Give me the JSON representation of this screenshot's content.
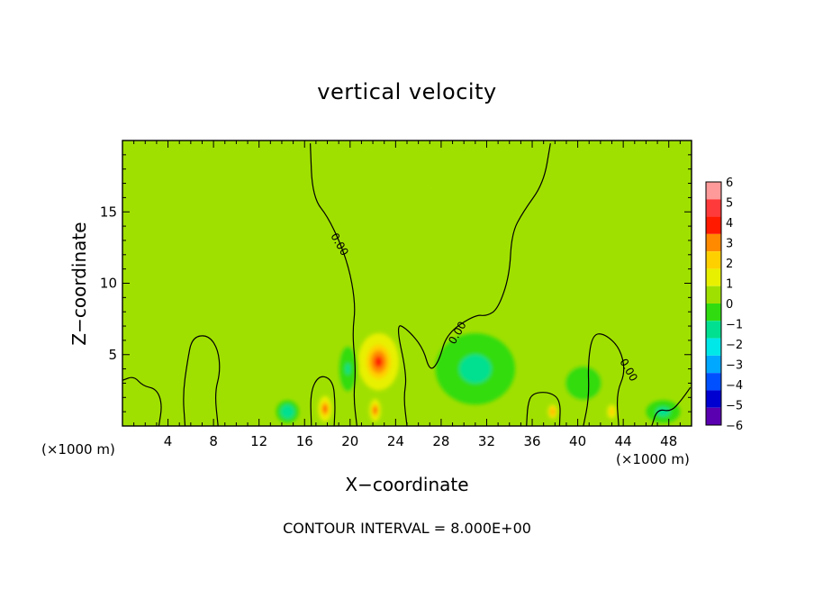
{
  "chart_data": {
    "type": "heatmap",
    "title": "vertical velocity",
    "xlabel": "X−coordinate",
    "ylabel": "Z−coordinate",
    "x_unit_label_left": "(×1000 m)",
    "x_unit_label_right": "(×1000 m)",
    "annotation": "CONTOUR INTERVAL = 8.000E+00",
    "xlim": [
      0,
      50
    ],
    "ylim": [
      0,
      20
    ],
    "x_ticks": [
      4,
      8,
      12,
      16,
      20,
      24,
      28,
      32,
      36,
      40,
      44,
      48
    ],
    "x_tick_labels": [
      "4",
      "8",
      "12",
      "16",
      "20",
      "24",
      "28",
      "32",
      "36",
      "40",
      "44",
      "48"
    ],
    "y_ticks": [
      5,
      10,
      15
    ],
    "y_tick_labels": [
      "5",
      "10",
      "15"
    ],
    "colorbar": {
      "ticks": [
        6,
        5,
        4,
        3,
        2,
        1,
        0,
        -1,
        -2,
        -3,
        -4,
        -5,
        -6
      ],
      "tick_labels": [
        "6",
        "5",
        "4",
        "3",
        "2",
        "1",
        "0",
        "−1",
        "−2",
        "−3",
        "−4",
        "−5",
        "−6"
      ],
      "colors": [
        "#ff9a9a",
        "#ff3a3a",
        "#ff1a00",
        "#ff8a00",
        "#ffd000",
        "#e8f000",
        "#a0e000",
        "#30dc10",
        "#00e090",
        "#00e8e8",
        "#00a8ff",
        "#0050ff",
        "#0000d0",
        "#5a00b0"
      ]
    },
    "background_value": 0.3,
    "features": [
      {
        "kind": "updraft",
        "x": 22.5,
        "z": 4.5,
        "peak": 4,
        "width_km": 1.8,
        "height_km": 2.0
      },
      {
        "kind": "updraft",
        "x": 17.8,
        "z": 1.2,
        "peak": 4.5,
        "width_km": 0.6,
        "height_km": 0.9
      },
      {
        "kind": "updraft",
        "x": 22.2,
        "z": 1.1,
        "peak": 4,
        "width_km": 0.5,
        "height_km": 0.8
      },
      {
        "kind": "updraft",
        "x": 37.8,
        "z": 1.0,
        "peak": 3.5,
        "width_km": 0.5,
        "height_km": 0.6
      },
      {
        "kind": "updraft",
        "x": 43.0,
        "z": 1.0,
        "peak": 2.5,
        "width_km": 0.5,
        "height_km": 0.6
      },
      {
        "kind": "plume",
        "x": 25.5,
        "z": 11.5,
        "peak": 0.6,
        "width_km": 4.5,
        "height_km": 6.0
      },
      {
        "kind": "downdraft",
        "x": 31.0,
        "z": 4.0,
        "peak": -1.8,
        "width_km": 3.5,
        "height_km": 2.5
      },
      {
        "kind": "downdraft",
        "x": 19.8,
        "z": 4.0,
        "peak": -1.2,
        "width_km": 1.0,
        "height_km": 2.0
      },
      {
        "kind": "downdraft",
        "x": 14.5,
        "z": 1.0,
        "peak": -2.0,
        "width_km": 1.0,
        "height_km": 0.8
      },
      {
        "kind": "downdraft",
        "x": 40.5,
        "z": 3.0,
        "peak": -1.0,
        "width_km": 2.0,
        "height_km": 1.5
      },
      {
        "kind": "downdraft",
        "x": 47.5,
        "z": 1.0,
        "peak": -1.5,
        "width_km": 1.5,
        "height_km": 0.8
      }
    ],
    "zero_contours": [
      {
        "points": [
          [
            16.5,
            19.8
          ],
          [
            16.7,
            16
          ],
          [
            18.2,
            14.5
          ],
          [
            19.8,
            11.5
          ],
          [
            20.5,
            8.5
          ],
          [
            20.2,
            6.5
          ],
          [
            20.5,
            4
          ],
          [
            20.3,
            2
          ],
          [
            20.6,
            0
          ]
        ]
      },
      {
        "points": [
          [
            37.6,
            19.8
          ],
          [
            37.0,
            17
          ],
          [
            35.2,
            15
          ],
          [
            34.2,
            13.5
          ],
          [
            34.0,
            10.5
          ],
          [
            33.0,
            8.2
          ],
          [
            32.0,
            7.7
          ],
          [
            31.0,
            7.8
          ],
          [
            28.5,
            6.5
          ],
          [
            27.8,
            4.5
          ],
          [
            27.0,
            3.8
          ],
          [
            26.4,
            5.5
          ],
          [
            25.0,
            6.8
          ],
          [
            24.0,
            7.2
          ],
          [
            25.0,
            3.5
          ],
          [
            24.7,
            2
          ],
          [
            25.0,
            0
          ]
        ]
      },
      {
        "points": [
          [
            16.6,
            0
          ],
          [
            16.5,
            2.4
          ],
          [
            17.3,
            3.6
          ],
          [
            18.5,
            3.2
          ],
          [
            18.7,
            1.5
          ],
          [
            18.6,
            0
          ]
        ]
      },
      {
        "points": [
          [
            0,
            3.2
          ],
          [
            1.0,
            3.5
          ],
          [
            1.8,
            2.8
          ],
          [
            3.0,
            2.6
          ],
          [
            3.5,
            1.5
          ],
          [
            3.2,
            0
          ]
        ]
      },
      {
        "points": [
          [
            5.5,
            0
          ],
          [
            5.3,
            2.2
          ],
          [
            5.7,
            4.5
          ],
          [
            6.1,
            6.2
          ],
          [
            7.5,
            6.4
          ],
          [
            8.4,
            5.4
          ],
          [
            8.6,
            3.8
          ],
          [
            8.1,
            2.3
          ],
          [
            8.4,
            0
          ]
        ]
      },
      {
        "points": [
          [
            35.5,
            0
          ],
          [
            35.6,
            1.5
          ],
          [
            36.0,
            2.3
          ],
          [
            37.5,
            2.4
          ],
          [
            38.5,
            1.8
          ],
          [
            38.4,
            0
          ]
        ]
      },
      {
        "points": [
          [
            40.5,
            0
          ],
          [
            41.0,
            2.0
          ],
          [
            40.9,
            4.5
          ],
          [
            41.3,
            6.4
          ],
          [
            42.3,
            6.5
          ],
          [
            43.7,
            5.5
          ],
          [
            44.2,
            3.8
          ],
          [
            43.4,
            2.3
          ],
          [
            43.6,
            0
          ]
        ]
      },
      {
        "points": [
          [
            46.5,
            0
          ],
          [
            47.0,
            1.2
          ],
          [
            48.2,
            1.0
          ],
          [
            49.1,
            1.8
          ],
          [
            49.9,
            2.7
          ]
        ]
      }
    ],
    "zero_contour_labels": [
      {
        "text": "0.00",
        "x": 18.8,
        "z": 12.6,
        "angle": 60
      },
      {
        "text": "0.00",
        "x": 29.7,
        "z": 6.4,
        "angle": -60
      },
      {
        "text": "0.00",
        "x": 44.2,
        "z": 3.8,
        "angle": 60
      }
    ]
  }
}
